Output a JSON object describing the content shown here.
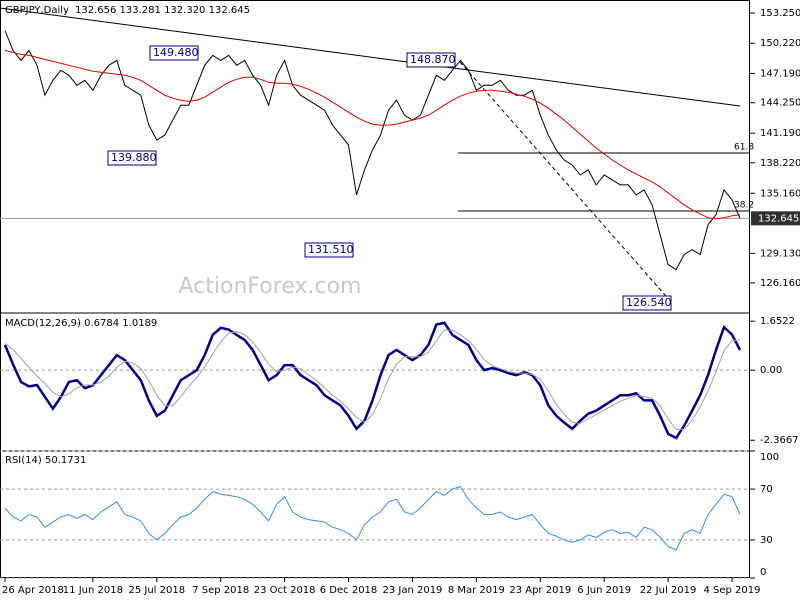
{
  "chart_data": [
    {
      "type": "line",
      "title": "GBPJPY,Daily",
      "subtitle": "132.656 133.281 132.320 132.645",
      "ylim": [
        123.14,
        154.56
      ],
      "yticks": [
        {
          "value": 153.25,
          "label": "153.250"
        },
        {
          "value": 150.22,
          "label": "150.220"
        },
        {
          "value": 147.19,
          "label": "147.190"
        },
        {
          "value": 144.25,
          "label": "144.250"
        },
        {
          "value": 141.19,
          "label": "141.190"
        },
        {
          "value": 138.22,
          "label": "138.220"
        },
        {
          "value": 135.16,
          "label": "135.160"
        },
        {
          "value": 129.13,
          "label": "129.130"
        },
        {
          "value": 126.16,
          "label": "126.160"
        }
      ],
      "current": {
        "value": 132.645,
        "label": "132.645"
      },
      "annotations": [
        "149.480",
        "139.880",
        "131.510",
        "148.870",
        "126.540",
        "61.8",
        "38.2"
      ],
      "watermark": "ActionForex.com",
      "series": [
        {
          "color": "#000000",
          "values": [
            151.5,
            149.5,
            148.5,
            149.5,
            148,
            145,
            146.5,
            147.5,
            147,
            146,
            146.5,
            145.5,
            147,
            148,
            148.5,
            146,
            145.5,
            145,
            142,
            140.5,
            141,
            142.5,
            144,
            144,
            146,
            148,
            149,
            148.5,
            149,
            148,
            148.5,
            147,
            146,
            144,
            147,
            148.5,
            146,
            145,
            144.5,
            144,
            143.5,
            142,
            141,
            140,
            135,
            137.5,
            139.5,
            141,
            143.5,
            144.5,
            143,
            142.5,
            143,
            145,
            147,
            146.5,
            147.5,
            148.5,
            147.5,
            145.5,
            146,
            146,
            146.5,
            145.5,
            145,
            145,
            145.5,
            143,
            141,
            139.5,
            138.5,
            138,
            137,
            137.5,
            136,
            137,
            136.5,
            136,
            136,
            135,
            135.5,
            134,
            131,
            128,
            127.5,
            129,
            129.5,
            129,
            132,
            133,
            135.5,
            134.5,
            132.645
          ]
        },
        {
          "color": "#dd0000",
          "values": [
            149.5,
            149.3,
            149.1,
            149,
            148.8,
            148.6,
            148.4,
            148.2,
            148,
            147.8,
            147.6,
            147.4,
            147.3,
            147.2,
            147.1,
            147,
            146.8,
            146.5,
            146,
            145.5,
            145,
            144.7,
            144.5,
            144.4,
            144.5,
            144.8,
            145.3,
            145.8,
            146.3,
            146.6,
            146.8,
            146.8,
            146.6,
            146.3,
            146.2,
            146.2,
            146.1,
            145.9,
            145.6,
            145.2,
            144.8,
            144.3,
            143.8,
            143.3,
            142.8,
            142.4,
            142.1,
            142,
            142,
            142.1,
            142.3,
            142.5,
            142.7,
            143,
            143.5,
            144,
            144.5,
            144.9,
            145.2,
            145.4,
            145.5,
            145.5,
            145.4,
            145.3,
            145.1,
            144.9,
            144.6,
            144.2,
            143.7,
            143.1,
            142.5,
            141.8,
            141.1,
            140.4,
            139.7,
            139.1,
            138.5,
            138,
            137.5,
            137.1,
            136.7,
            136.3,
            135.8,
            135.2,
            134.6,
            134,
            133.5,
            133.1,
            132.7,
            132.6,
            132.7,
            132.9,
            133
          ]
        }
      ]
    },
    {
      "type": "line",
      "title": "MACD(12,26,9) 0.6784 1.0189",
      "ylim": [
        -2.73,
        1.93
      ],
      "yticks": [
        1.6522,
        {
          "value": 0,
          "label": "0.00"
        },
        -2.3667
      ],
      "zero_line": true,
      "series": [
        {
          "color": "#000080",
          "values": [
            0.85,
            0.2,
            -0.4,
            -0.55,
            -0.5,
            -0.9,
            -1.3,
            -0.9,
            -0.4,
            -0.34,
            -0.61,
            -0.51,
            -0.17,
            0.17,
            0.51,
            0.34,
            0,
            -0.34,
            -1.02,
            -1.54,
            -1.37,
            -0.85,
            -0.34,
            -0.17,
            0,
            0.51,
            1.19,
            1.43,
            1.37,
            1.19,
            1.02,
            0.68,
            0.17,
            -0.34,
            -0.17,
            0.17,
            0.17,
            -0.17,
            -0.34,
            -0.51,
            -0.85,
            -1.02,
            -1.19,
            -1.54,
            -1.98,
            -1.71,
            -1.02,
            -0.17,
            0.51,
            0.68,
            0.51,
            0.34,
            0.51,
            0.85,
            1.54,
            1.6,
            1.19,
            1.02,
            0.85,
            0.34,
            0,
            0.07,
            0,
            -0.1,
            -0.17,
            -0.07,
            -0.17,
            -0.51,
            -1.19,
            -1.54,
            -1.77,
            -1.98,
            -1.71,
            -1.47,
            -1.37,
            -1.19,
            -1.02,
            -0.85,
            -0.85,
            -0.78,
            -1.02,
            -1.02,
            -1.54,
            -2.15,
            -2.29,
            -1.88,
            -1.37,
            -0.85,
            -0.17,
            0.68,
            1.45,
            1.2,
            0.68
          ]
        },
        {
          "color": "#a0a0a0",
          "values": [
            0.9,
            0.7,
            0.4,
            0.1,
            -0.2,
            -0.45,
            -0.75,
            -0.9,
            -0.8,
            -0.6,
            -0.5,
            -0.5,
            -0.4,
            -0.2,
            0.1,
            0.3,
            0.25,
            0.05,
            -0.35,
            -0.85,
            -1.2,
            -1.2,
            -0.9,
            -0.55,
            -0.25,
            0.1,
            0.55,
            0.95,
            1.25,
            1.3,
            1.2,
            0.95,
            0.6,
            0.2,
            -0.05,
            0,
            0.1,
            0.05,
            -0.15,
            -0.35,
            -0.6,
            -0.85,
            -1.05,
            -1.3,
            -1.6,
            -1.75,
            -1.5,
            -0.95,
            -0.3,
            0.2,
            0.45,
            0.45,
            0.45,
            0.6,
            1.0,
            1.35,
            1.35,
            1.2,
            1.0,
            0.7,
            0.35,
            0.15,
            0.05,
            -0.05,
            -0.1,
            -0.1,
            -0.15,
            -0.3,
            -0.7,
            -1.15,
            -1.5,
            -1.75,
            -1.8,
            -1.65,
            -1.5,
            -1.35,
            -1.2,
            -1.05,
            -0.95,
            -0.85,
            -0.9,
            -0.95,
            -1.2,
            -1.65,
            -2.0,
            -2.0,
            -1.7,
            -1.25,
            -0.7,
            -0.05,
            0.65,
            1.0,
            1.02
          ]
        }
      ]
    },
    {
      "type": "line",
      "title": "RSI(14) 50.1731",
      "ylim": [
        0,
        100
      ],
      "yticks": [
        0,
        30,
        70,
        100
      ],
      "grid": true,
      "categories": [
        "26 Apr 2018",
        null,
        null,
        null,
        null,
        null,
        null,
        null,
        null,
        null,
        null,
        "11 Jun 2018",
        null,
        null,
        null,
        null,
        null,
        null,
        null,
        "25 Jul 2018",
        null,
        null,
        null,
        null,
        null,
        null,
        null,
        "7 Sep 2018",
        null,
        null,
        null,
        null,
        null,
        null,
        null,
        "23 Oct 2018",
        null,
        null,
        null,
        null,
        null,
        null,
        null,
        "6 Dec 2018",
        null,
        null,
        null,
        null,
        null,
        null,
        null,
        "23 Jan 2019",
        null,
        null,
        null,
        null,
        null,
        null,
        null,
        "8 Mar 2019",
        null,
        null,
        null,
        null,
        null,
        null,
        null,
        "23 Apr 2019",
        null,
        null,
        null,
        null,
        null,
        null,
        null,
        "6 Jun 2019",
        null,
        null,
        null,
        null,
        null,
        null,
        null,
        "22 Jul 2019",
        null,
        null,
        null,
        null,
        null,
        null,
        null,
        "4 Sep 2019",
        null
      ],
      "series": [
        {
          "color": "#3a8fd8",
          "values": [
            55,
            48,
            45,
            50,
            48,
            40,
            44,
            48,
            50,
            47,
            50,
            46,
            52,
            56,
            60,
            50,
            48,
            45,
            35,
            30,
            35,
            42,
            48,
            50,
            55,
            62,
            68,
            66,
            65,
            64,
            62,
            58,
            52,
            45,
            58,
            64,
            52,
            48,
            46,
            45,
            44,
            40,
            38,
            35,
            30,
            42,
            48,
            52,
            60,
            62,
            52,
            50,
            55,
            62,
            68,
            65,
            70,
            72,
            62,
            55,
            50,
            50,
            52,
            48,
            46,
            48,
            50,
            42,
            35,
            33,
            30,
            28,
            30,
            34,
            32,
            36,
            38,
            35,
            36,
            32,
            40,
            38,
            32,
            25,
            22,
            35,
            38,
            35,
            50,
            58,
            66,
            64,
            50.17
          ]
        }
      ]
    }
  ]
}
